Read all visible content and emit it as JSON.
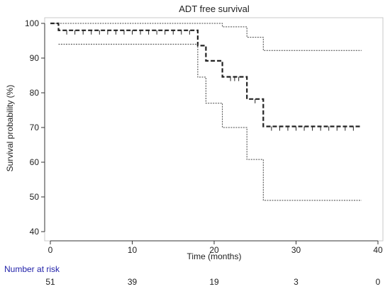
{
  "chart_data": {
    "type": "line",
    "title": "ADT free survival",
    "xlabel": "Time (months)",
    "ylabel": "Survival probability (%)",
    "xlim": [
      0,
      40
    ],
    "ylim": [
      40,
      100
    ],
    "xticks": [
      0,
      10,
      20,
      30,
      40
    ],
    "yticks": [
      40,
      50,
      60,
      70,
      80,
      90,
      100
    ],
    "grid": false,
    "series": [
      {
        "role": "estimate",
        "style": "dashed-bold",
        "steps": [
          [
            0,
            100
          ],
          [
            1,
            98
          ],
          [
            18,
            93.6
          ],
          [
            19,
            89.2
          ],
          [
            21,
            84.6
          ],
          [
            24,
            78.2
          ],
          [
            26,
            70.3
          ],
          [
            38,
            70.3
          ]
        ],
        "censored_x": [
          2,
          3,
          4,
          5,
          6,
          7,
          8,
          9,
          10,
          11,
          12,
          13,
          14,
          15,
          16,
          17,
          22,
          22.5,
          23,
          25,
          27,
          28,
          29,
          30,
          31,
          32,
          33,
          34,
          35,
          36,
          37
        ]
      },
      {
        "role": "upper-ci",
        "style": "dotted",
        "steps": [
          [
            0,
            100
          ],
          [
            21,
            99
          ],
          [
            24,
            96
          ],
          [
            26,
            92.2
          ],
          [
            38,
            92.2
          ]
        ]
      },
      {
        "role": "lower-ci",
        "style": "dotted",
        "steps": [
          [
            1,
            94
          ],
          [
            18,
            84.5
          ],
          [
            19,
            77
          ],
          [
            21,
            70
          ],
          [
            24,
            60.8
          ],
          [
            26,
            49
          ],
          [
            38,
            49
          ]
        ]
      }
    ],
    "risk_table": {
      "title": "Number at risk",
      "times": [
        0,
        10,
        20,
        30,
        40
      ],
      "counts": [
        "51",
        "39",
        "19",
        "3",
        "0"
      ]
    }
  }
}
